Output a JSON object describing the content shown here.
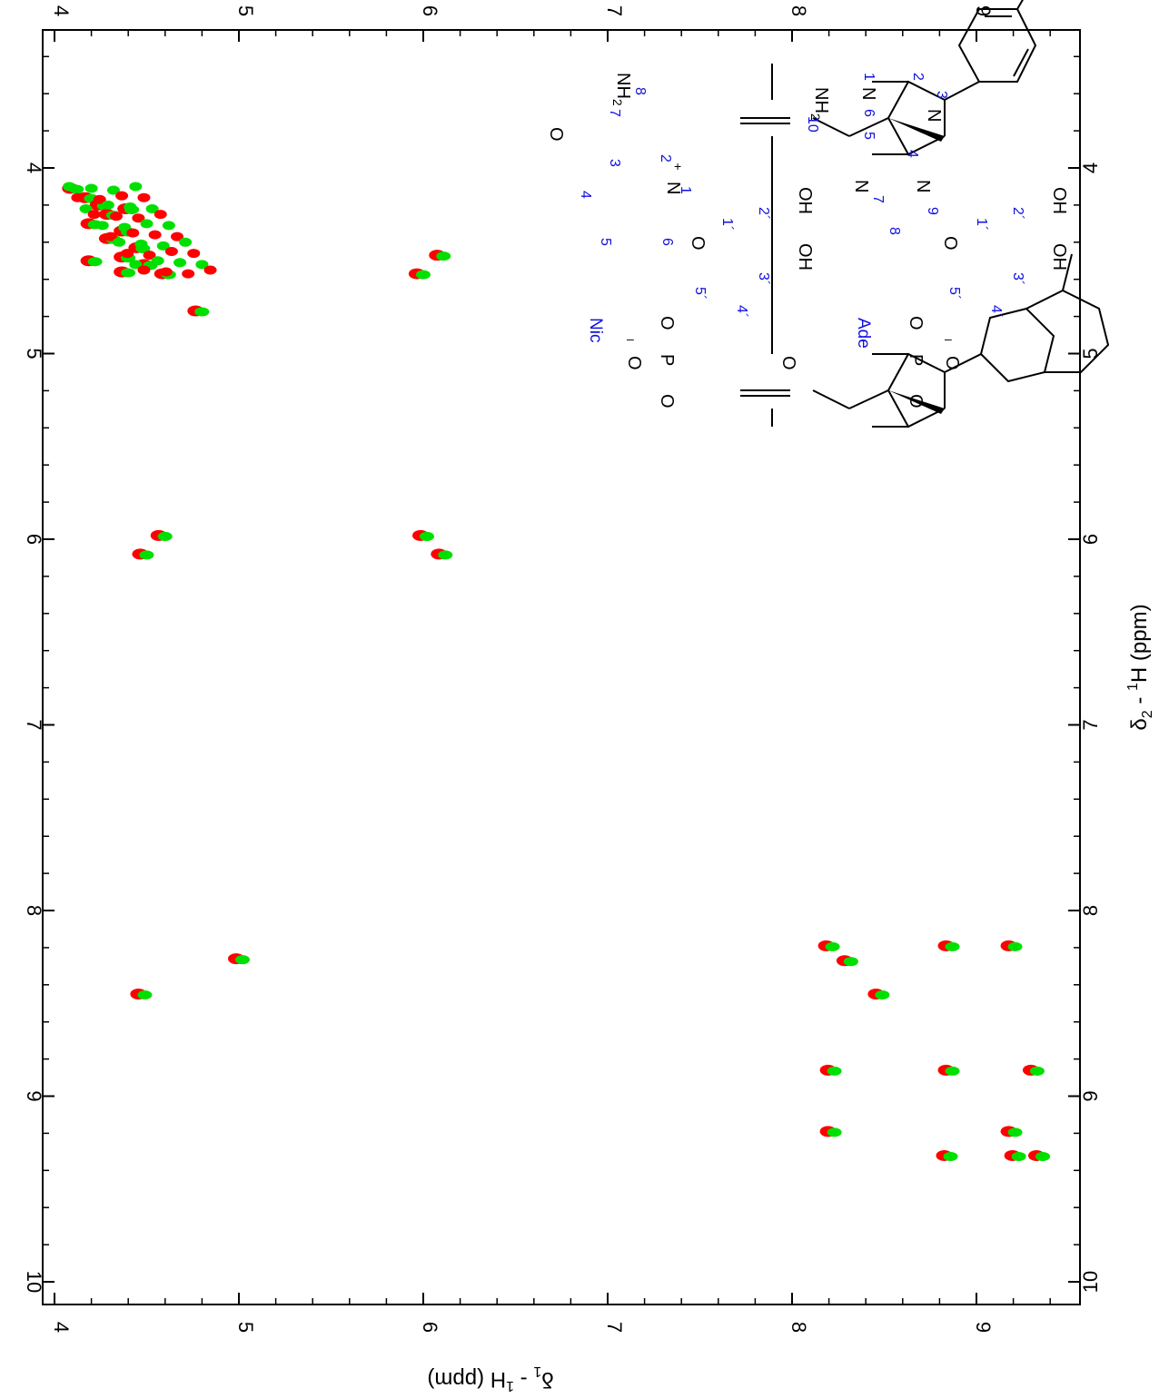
{
  "chart_data": {
    "type": "scatter",
    "title": "",
    "xlabel": "δ2 - 1H  (ppm)",
    "ylabel": "δ1 - 1H  (ppm)",
    "x_axis": {
      "label_parts": [
        "δ",
        "2",
        " - ",
        "1",
        "H  (ppm)"
      ],
      "range": [
        4.0,
        10.0
      ],
      "ticks": [
        4,
        5,
        6,
        7,
        8,
        9,
        10
      ]
    },
    "y_axis": {
      "label_parts": [
        "δ",
        "1",
        " - ",
        "1",
        "H  (ppm)"
      ],
      "range": [
        4.0,
        9.55
      ],
      "ticks": [
        4,
        5,
        6,
        7,
        8,
        9
      ]
    },
    "grid": false,
    "orientation": "rotated 90° (x axis vertical, increasing downward)",
    "series": [
      {
        "name": "",
        "color": "#ff0000"
      },
      {
        "name": "",
        "color": "#00e000"
      }
    ],
    "peaks": [
      {
        "x": 4.11,
        "y": 4.1
      },
      {
        "x": 4.16,
        "y": 4.18
      },
      {
        "x": 4.2,
        "y": 4.25
      },
      {
        "x": 4.25,
        "y": 4.3
      },
      {
        "x": 4.3,
        "y": 4.2
      },
      {
        "x": 4.34,
        "y": 4.38
      },
      {
        "x": 4.38,
        "y": 4.3
      },
      {
        "x": 4.43,
        "y": 4.46
      },
      {
        "x": 4.48,
        "y": 4.38
      },
      {
        "x": 4.52,
        "y": 4.5
      },
      {
        "x": 4.57,
        "y": 4.6
      },
      {
        "x": 4.22,
        "y": 4.4
      },
      {
        "x": 4.5,
        "y": 4.2
      },
      {
        "x": 4.56,
        "y": 4.38
      },
      {
        "x": 4.77,
        "y": 4.78
      },
      {
        "x": 4.47,
        "y": 6.09
      },
      {
        "x": 4.57,
        "y": 5.98
      },
      {
        "x": 5.98,
        "y": 4.58
      },
      {
        "x": 6.08,
        "y": 4.48
      },
      {
        "x": 5.98,
        "y": 6.0
      },
      {
        "x": 6.08,
        "y": 6.1
      },
      {
        "x": 8.45,
        "y": 4.47
      },
      {
        "x": 8.26,
        "y": 5.0
      },
      {
        "x": 8.19,
        "y": 8.2
      },
      {
        "x": 8.27,
        "y": 8.3
      },
      {
        "x": 8.19,
        "y": 8.85
      },
      {
        "x": 8.19,
        "y": 9.19
      },
      {
        "x": 8.45,
        "y": 8.47
      },
      {
        "x": 8.86,
        "y": 8.21
      },
      {
        "x": 8.86,
        "y": 8.85
      },
      {
        "x": 8.86,
        "y": 9.31
      },
      {
        "x": 9.19,
        "y": 8.21
      },
      {
        "x": 9.19,
        "y": 9.19
      },
      {
        "x": 9.32,
        "y": 8.84
      },
      {
        "x": 9.32,
        "y": 9.21
      },
      {
        "x": 9.32,
        "y": 9.34
      }
    ]
  },
  "structure": {
    "atoms": {
      "o_upper": "O",
      "nh2": "NH",
      "nh2_sub": "2",
      "n_pyr": "N",
      "plus": "+",
      "o_ring_top": "O",
      "oh_a": "OH",
      "oh_b": "OH",
      "o_link": "O",
      "p_top": "P",
      "o_minus_top": "O",
      "minus_top": "–",
      "o_double_top": "O",
      "o_bridge": "O",
      "p_bot": "P",
      "o_minus_bot": "O",
      "minus_bot": "–",
      "o_double_bot": "O",
      "o_link_bot": "O",
      "n_a": "N",
      "n_b": "N",
      "n_c": "N",
      "n_d": "N",
      "n_e": "N",
      "nh2_ade": "NH",
      "nh2_ade_sub": "2",
      "o_ring_bot": "O",
      "oh_c": "OH",
      "oh_d": "OH"
    },
    "labels_nic": [
      "1",
      "2",
      "3",
      "4",
      "5",
      "6",
      "7",
      "8",
      "1´",
      "2´",
      "3´",
      "4´",
      "5´"
    ],
    "labels_ade": [
      "1",
      "2",
      "3",
      "4",
      "5",
      "6",
      "7",
      "8",
      "9",
      "10",
      "1´",
      "2´",
      "3´",
      "4´",
      "5´"
    ],
    "residue_nic": "Nic",
    "residue_ade": "Ade"
  }
}
